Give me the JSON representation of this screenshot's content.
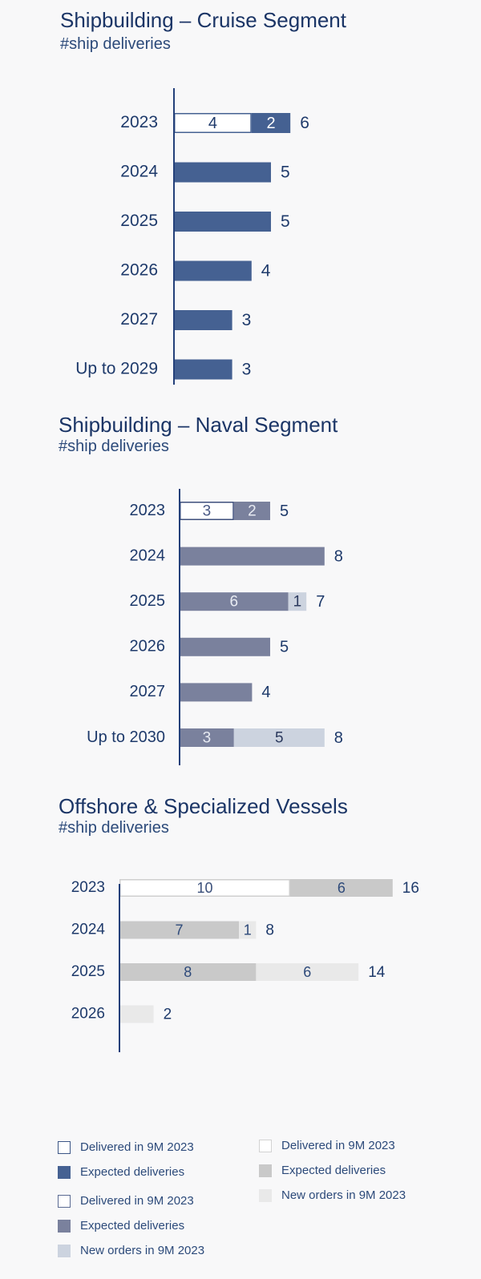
{
  "charts": {
    "cruise": {
      "title": "Shipbuilding – Cruise Segment",
      "subtitle": "#ship deliveries"
    },
    "naval": {
      "title": "Shipbuilding – Naval Segment",
      "subtitle": "#ship deliveries"
    },
    "offshore": {
      "title": "Offshore & Specialized Vessels",
      "subtitle": "#ship deliveries"
    }
  },
  "chart_data": [
    {
      "type": "bar",
      "orientation": "horizontal",
      "stacked": true,
      "title": "Shipbuilding – Cruise Segment",
      "subtitle": "#ship deliveries",
      "categories": [
        "2023",
        "2024",
        "2025",
        "2026",
        "2027",
        "Up to 2029"
      ],
      "series": [
        {
          "name": "Delivered in 9M 2023",
          "values": [
            4,
            0,
            0,
            0,
            0,
            0
          ]
        },
        {
          "name": "Expected deliveries",
          "values": [
            2,
            5,
            5,
            4,
            3,
            3
          ]
        }
      ],
      "totals": [
        6,
        5,
        5,
        4,
        3,
        3
      ],
      "xlim": [
        0,
        8
      ]
    },
    {
      "type": "bar",
      "orientation": "horizontal",
      "stacked": true,
      "title": "Shipbuilding – Naval Segment",
      "subtitle": "#ship deliveries",
      "categories": [
        "2023",
        "2024",
        "2025",
        "2026",
        "2027",
        "Up to 2030"
      ],
      "series": [
        {
          "name": "Delivered in 9M 2023",
          "values": [
            3,
            0,
            0,
            0,
            0,
            0
          ]
        },
        {
          "name": "Expected deliveries",
          "values": [
            2,
            8,
            6,
            5,
            4,
            3
          ]
        },
        {
          "name": "New orders in 9M 2023",
          "values": [
            0,
            0,
            1,
            0,
            0,
            5
          ]
        }
      ],
      "totals": [
        5,
        8,
        7,
        5,
        4,
        8
      ],
      "xlim": [
        0,
        10
      ]
    },
    {
      "type": "bar",
      "orientation": "horizontal",
      "stacked": true,
      "title": "Offshore & Specialized Vessels",
      "subtitle": "#ship deliveries",
      "categories": [
        "2023",
        "2024",
        "2025",
        "2026"
      ],
      "series": [
        {
          "name": "Delivered in 9M 2023",
          "values": [
            10,
            0,
            0,
            0
          ]
        },
        {
          "name": "Expected deliveries",
          "values": [
            6,
            7,
            8,
            0
          ]
        },
        {
          "name": "New orders in 9M 2023",
          "values": [
            0,
            1,
            6,
            2
          ]
        }
      ],
      "totals": [
        16,
        8,
        14,
        2
      ],
      "xlim": [
        0,
        20
      ]
    }
  ],
  "legends": {
    "cruise": [
      "Delivered in 9M 2023",
      "Expected deliveries"
    ],
    "naval": [
      "Delivered in 9M 2023",
      "Expected deliveries",
      "New orders in 9M 2023"
    ],
    "offshore": [
      "Delivered in 9M 2023",
      "Expected deliveries",
      "New orders in 9M 2023"
    ]
  },
  "colors": {
    "cruise_expected": "#456192",
    "cruise_delivered_border": "#456192",
    "naval_expected": "#7a819d",
    "naval_new": "#ccd3df",
    "naval_delivered_border": "#3e4f7c",
    "offshore_expected": "#c9c9c9",
    "offshore_new": "#e9e9e9",
    "offshore_delivered_border": "#cfcfcf",
    "axis": "#24407a",
    "text": "#1e3a6b"
  }
}
